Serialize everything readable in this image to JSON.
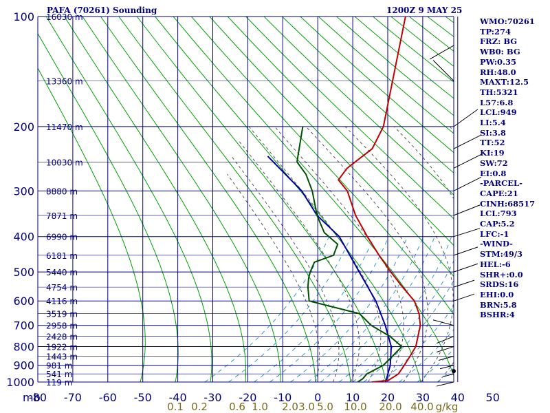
{
  "header": {
    "station": "PAFA (70261) Sounding",
    "time": "1200Z  9 MAY 25"
  },
  "indices": [
    "WMO:70261",
    "TP:274",
    "FRZ: BG",
    "WB0: BG",
    "PW:0.35",
    "RH:48.0",
    "MAXT:12.5",
    "TH:5321",
    "L57:6.8",
    "LCL:949",
    "LI:5.4",
    "SI:3.8",
    "TT:52",
    "KI:19",
    "SW:72",
    "EI:0.8",
    "-PARCEL-",
    "CAPE:21",
    "CINH:68517",
    "LCL:793",
    "CAP:5.2",
    "LFC:-1",
    "-WIND-",
    "STM:49/3",
    "HEL:-6",
    "SHR+:0.0",
    "SRDS:16",
    "EHI:0.0",
    "BRN:5.8",
    "BSHR:4"
  ],
  "colors": {
    "grid": "#000080",
    "temp": "#c00000",
    "dewpoint": "#005000",
    "parcel": "#0000a0",
    "dry_adiabat": "#00a000",
    "moist_adiabat": "#555555",
    "mixing_ratio": "#3399cc",
    "mixing_label": "#7a6a1a"
  },
  "chart_data": {
    "type": "skew-t",
    "pressure_levels": [
      100,
      200,
      300,
      400,
      500,
      600,
      700,
      800,
      900,
      1000
    ],
    "pressure_unit_label": "mb",
    "temperature_ticks": [
      -80,
      -70,
      -60,
      -50,
      -40,
      -30,
      -20,
      -10,
      0,
      10,
      20,
      30,
      40,
      50
    ],
    "temperature_tick_labels": [
      "-80",
      "-70",
      "-60",
      "-50",
      "-40",
      "-30",
      "-20",
      "-10",
      "0",
      "10",
      "20",
      "30",
      "40",
      "50"
    ],
    "height_labels": [
      {
        "p": 100,
        "label": "16030 m"
      },
      {
        "p": 150,
        "label": "13360 m"
      },
      {
        "p": 200,
        "label": "11470 m"
      },
      {
        "p": 250,
        "label": "10030 m"
      },
      {
        "p": 300,
        "label": "8880 m"
      },
      {
        "p": 350,
        "label": "7871 m"
      },
      {
        "p": 400,
        "label": "6990 m"
      },
      {
        "p": 450,
        "label": "6181 m"
      },
      {
        "p": 500,
        "label": "5440 m"
      },
      {
        "p": 550,
        "label": "4754 m"
      },
      {
        "p": 600,
        "label": "4116 m"
      },
      {
        "p": 650,
        "label": "3519 m"
      },
      {
        "p": 700,
        "label": "2958 m"
      },
      {
        "p": 750,
        "label": "2428 m"
      },
      {
        "p": 800,
        "label": "1922 m"
      },
      {
        "p": 850,
        "label": "1443 m"
      },
      {
        "p": 900,
        "label": "981 m"
      },
      {
        "p": 950,
        "label": "541 m"
      },
      {
        "p": 1000,
        "label": "119 m"
      }
    ],
    "mixing_ratio_labels": [
      "0.1",
      "0.2",
      "0.6",
      "1.0",
      "2.0",
      "3.0",
      "5.0",
      "10.0",
      "20.0",
      "40.0",
      "g/kg"
    ],
    "temperature": [
      [
        100,
        -50
      ],
      [
        200,
        -49
      ],
      [
        230,
        -50
      ],
      [
        260,
        -55
      ],
      [
        280,
        -56
      ],
      [
        300,
        -52
      ],
      [
        350,
        -46
      ],
      [
        400,
        -39
      ],
      [
        450,
        -32
      ],
      [
        500,
        -25
      ],
      [
        550,
        -18
      ],
      [
        600,
        -11
      ],
      [
        650,
        -6
      ],
      [
        700,
        -2
      ],
      [
        800,
        4
      ],
      [
        850,
        6
      ],
      [
        900,
        8
      ],
      [
        950,
        10
      ],
      [
        990,
        10
      ],
      [
        1000,
        6
      ]
    ],
    "dewpoint": [
      [
        200,
        -72
      ],
      [
        250,
        -70
      ],
      [
        270,
        -66
      ],
      [
        300,
        -62
      ],
      [
        350,
        -57
      ],
      [
        390,
        -52
      ],
      [
        420,
        -46
      ],
      [
        450,
        -45
      ],
      [
        470,
        -49
      ],
      [
        500,
        -48
      ],
      [
        520,
        -47
      ],
      [
        550,
        -45
      ],
      [
        600,
        -41
      ],
      [
        650,
        -23
      ],
      [
        700,
        -16
      ],
      [
        750,
        -7
      ],
      [
        800,
        0
      ],
      [
        850,
        1
      ],
      [
        900,
        2
      ],
      [
        950,
        1
      ],
      [
        980,
        2
      ],
      [
        1000,
        2
      ]
    ],
    "parcel": [
      [
        241,
        -79
      ],
      [
        300,
        -65
      ],
      [
        350,
        -57
      ],
      [
        400,
        -47
      ],
      [
        500,
        -34
      ],
      [
        600,
        -22
      ],
      [
        700,
        -12
      ],
      [
        800,
        -3
      ],
      [
        900,
        4
      ],
      [
        1000,
        10
      ]
    ]
  }
}
